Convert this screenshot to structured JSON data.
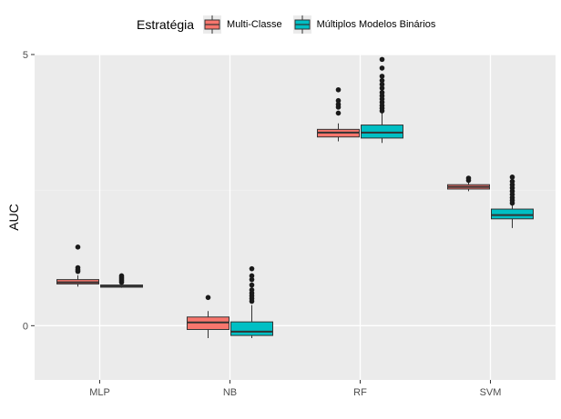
{
  "chart_data": {
    "type": "boxplot",
    "title": "",
    "xlabel": "",
    "ylabel": "AUC",
    "ylim": [
      -1.0,
      5.0
    ],
    "yticks": [
      0,
      5
    ],
    "grid": true,
    "legend_position": "top",
    "legend_title": "Estratégia",
    "categories": [
      "MLP",
      "NB",
      "RF",
      "SVM"
    ],
    "series": [
      {
        "name": "Multi-Classe",
        "color": "#F8766D",
        "boxes": [
          {
            "category": "MLP",
            "whisker_low": 0.72,
            "q1": 0.77,
            "median": 0.8,
            "q3": 0.85,
            "whisker_high": 0.93,
            "outliers": [
              1.0,
              1.03,
              1.07,
              1.45
            ]
          },
          {
            "category": "NB",
            "whisker_low": -0.23,
            "q1": -0.07,
            "median": 0.06,
            "q3": 0.16,
            "whisker_high": 0.27,
            "outliers": [
              0.52
            ]
          },
          {
            "category": "RF",
            "whisker_low": 3.4,
            "q1": 3.48,
            "median": 3.56,
            "q3": 3.62,
            "whisker_high": 3.73,
            "outliers": [
              3.92,
              4.03,
              4.08,
              4.15,
              4.35
            ]
          },
          {
            "category": "SVM",
            "whisker_low": 2.48,
            "q1": 2.52,
            "median": 2.56,
            "q3": 2.6,
            "whisker_high": 2.65,
            "outliers": [
              2.68,
              2.72
            ]
          }
        ]
      },
      {
        "name": "Múltiplos Modelos Binários",
        "color": "#00BFC4",
        "boxes": [
          {
            "category": "MLP",
            "whisker_low": 0.7,
            "q1": 0.71,
            "median": 0.73,
            "q3": 0.75,
            "whisker_high": 0.77,
            "outliers": [
              0.8,
              0.83,
              0.86,
              0.89,
              0.92
            ]
          },
          {
            "category": "NB",
            "whisker_low": -0.23,
            "q1": -0.18,
            "median": -0.11,
            "q3": 0.07,
            "whisker_high": 0.38,
            "outliers": [
              0.45,
              0.5,
              0.55,
              0.6,
              0.66,
              0.75,
              0.85,
              0.92,
              1.05
            ]
          },
          {
            "category": "RF",
            "whisker_low": 3.37,
            "q1": 3.46,
            "median": 3.56,
            "q3": 3.7,
            "whisker_high": 3.92,
            "outliers": [
              3.96,
              4.01,
              4.06,
              4.12,
              4.18,
              4.24,
              4.3,
              4.38,
              4.45,
              4.52,
              4.6,
              4.75,
              4.91
            ]
          },
          {
            "category": "SVM",
            "whisker_low": 1.8,
            "q1": 1.97,
            "median": 2.04,
            "q3": 2.15,
            "whisker_high": 2.22,
            "outliers": [
              2.26,
              2.31,
              2.36,
              2.42,
              2.48,
              2.54,
              2.6,
              2.66,
              2.74
            ]
          }
        ]
      }
    ]
  }
}
